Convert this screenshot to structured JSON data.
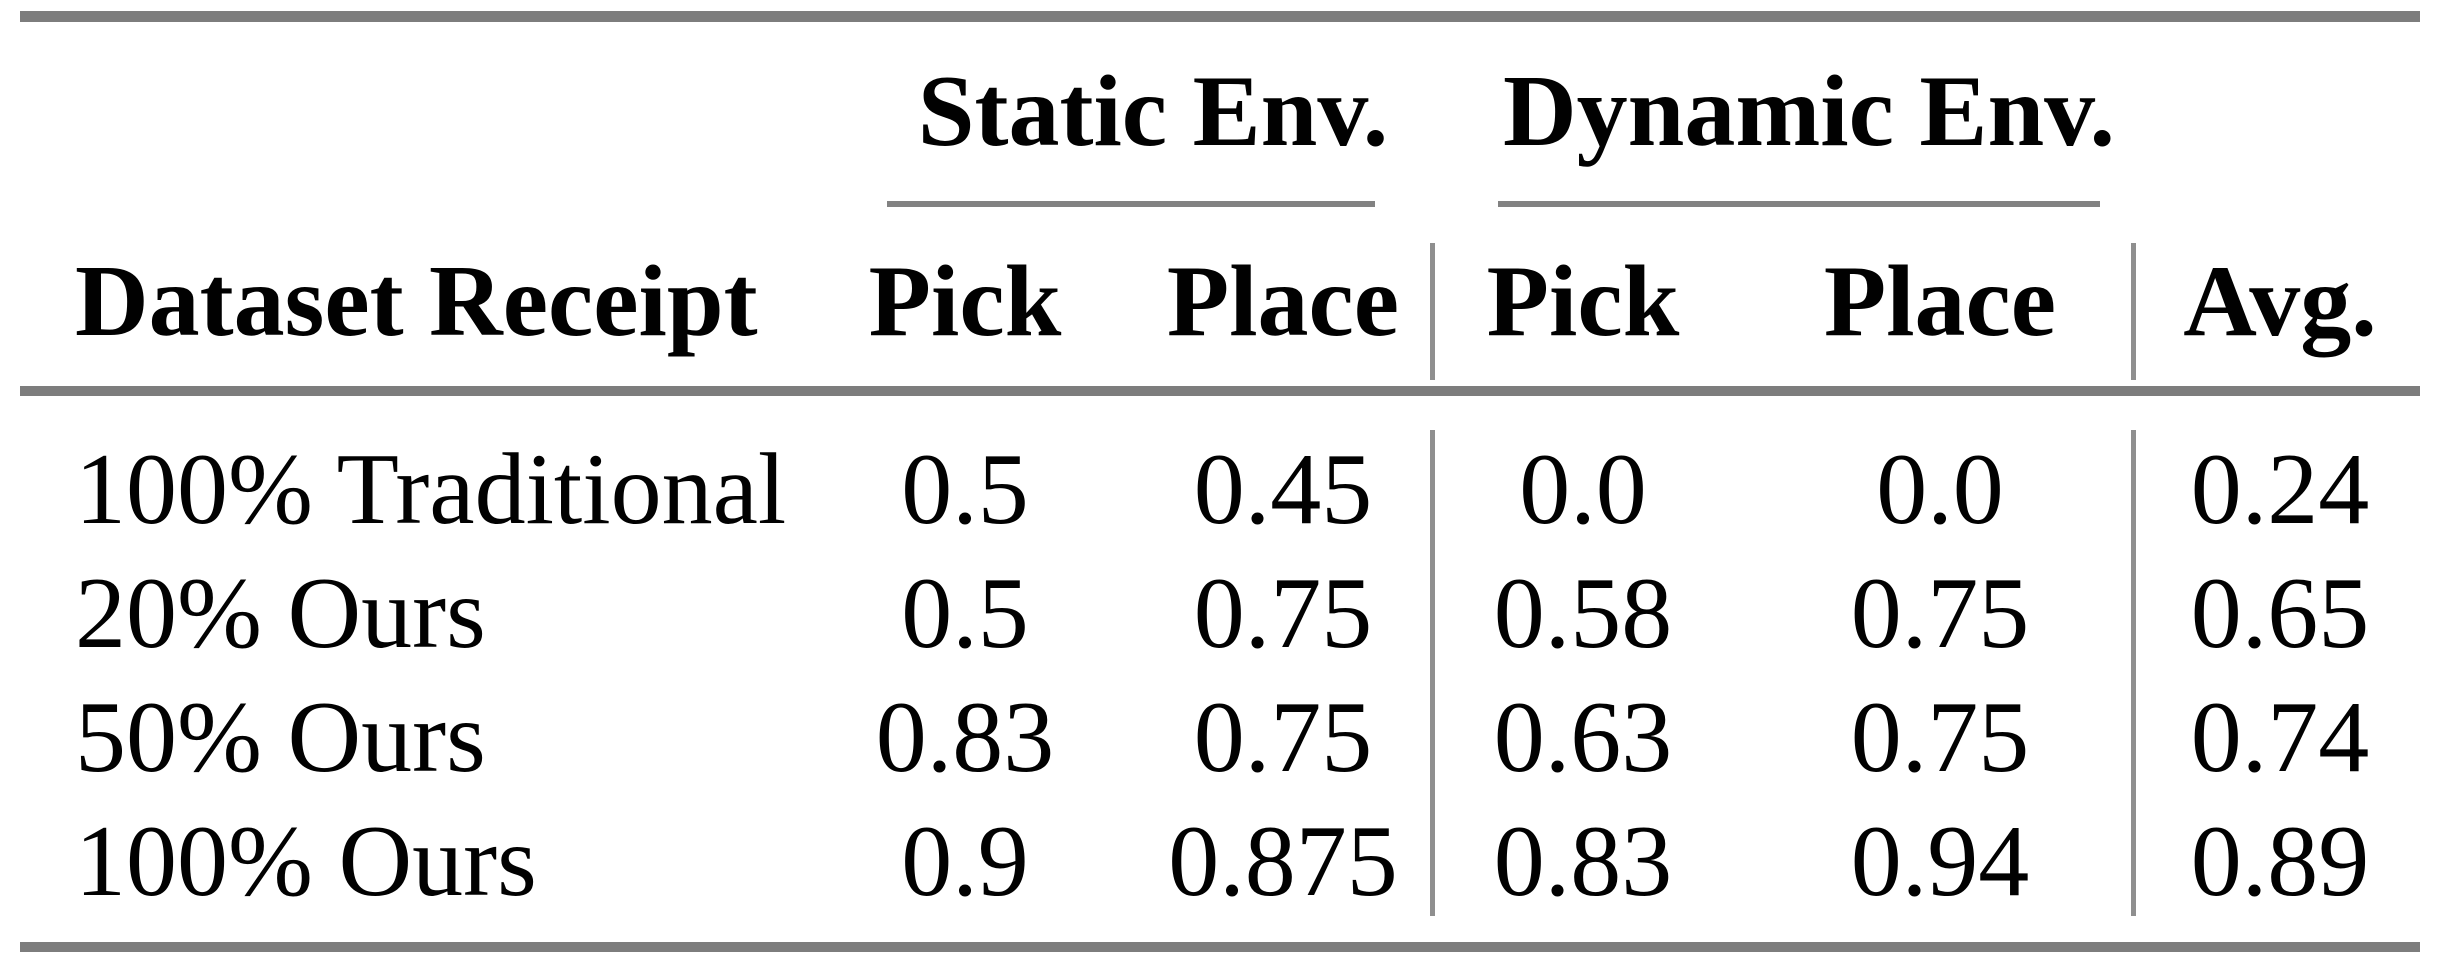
{
  "table": {
    "column_groups": [
      {
        "label": "Static Env.",
        "span_columns": [
          "Pick",
          "Place"
        ]
      },
      {
        "label": "Dynamic Env.",
        "span_columns": [
          "Pick",
          "Place"
        ]
      }
    ],
    "columns": {
      "label": "Dataset Receipt",
      "pick_static": "Pick",
      "place_static": "Place",
      "pick_dynamic": "Pick",
      "place_dynamic": "Place",
      "avg": "Avg."
    },
    "rows": [
      {
        "label": "100% Traditional",
        "values": [
          "0.5",
          "0.45",
          "0.0",
          "0.0",
          "0.24"
        ]
      },
      {
        "label": "20% Ours",
        "values": [
          "0.5",
          "0.75",
          "0.58",
          "0.75",
          "0.65"
        ]
      },
      {
        "label": "50% Ours",
        "values": [
          "0.83",
          "0.75",
          "0.63",
          "0.75",
          "0.74"
        ]
      },
      {
        "label": "100% Ours",
        "values": [
          "0.9",
          "0.875",
          "0.83",
          "0.94",
          "0.89"
        ]
      }
    ]
  },
  "colors": {
    "rule_gray": "#7d7d7d",
    "cmidrule_gray": "#828282",
    "vertical_divider_gray": "#8f8f8f",
    "text": "#010101",
    "background": "#ffffff"
  }
}
